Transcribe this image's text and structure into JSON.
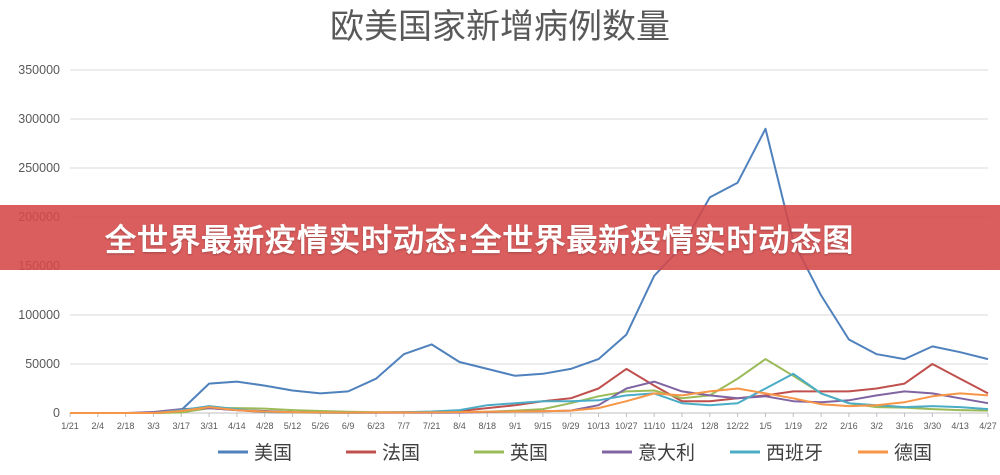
{
  "banner": {
    "text": "全世界最新疫情实时动态:全世界最新疫情实时动态图"
  },
  "chart_data": {
    "type": "line",
    "title": "欧美国家新增病例数量",
    "xlabel": "",
    "ylabel": "",
    "ylim": [
      0,
      350000
    ],
    "yticks": [
      "0",
      "50000",
      "100000",
      "150000",
      "200000",
      "250000",
      "300000",
      "350000"
    ],
    "x": [
      "1/21",
      "2/4",
      "2/18",
      "3/3",
      "3/17",
      "3/31",
      "4/14",
      "4/28",
      "5/12",
      "5/26",
      "6/9",
      "6/23",
      "7/7",
      "7/21",
      "8/4",
      "8/18",
      "9/1",
      "9/15",
      "9/29",
      "10/13",
      "10/27",
      "11/10",
      "11/24",
      "12/8",
      "12/22",
      "1/5",
      "1/19",
      "2/2",
      "2/16",
      "3/2",
      "3/16",
      "3/30",
      "4/13",
      "4/27"
    ],
    "grid": true,
    "legend": "bottom",
    "series": [
      {
        "name": "美国",
        "color": "#4F81BD",
        "values": [
          0,
          0,
          0,
          0,
          3000,
          30000,
          32000,
          28000,
          23000,
          20000,
          22000,
          35000,
          60000,
          70000,
          52000,
          45000,
          38000,
          40000,
          45000,
          55000,
          80000,
          140000,
          170000,
          220000,
          235000,
          290000,
          175000,
          120000,
          75000,
          60000,
          55000,
          68000,
          62000,
          55000
        ]
      },
      {
        "name": "法国",
        "color": "#C0504D",
        "values": [
          0,
          0,
          0,
          0,
          1000,
          5000,
          3000,
          1000,
          500,
          500,
          500,
          600,
          700,
          1000,
          2000,
          5000,
          8000,
          12000,
          15000,
          25000,
          45000,
          28000,
          12000,
          12000,
          15000,
          18000,
          22000,
          22000,
          22000,
          25000,
          30000,
          50000,
          35000,
          20000
        ]
      },
      {
        "name": "英国",
        "color": "#9BBB59",
        "values": [
          0,
          0,
          0,
          0,
          500,
          5000,
          5000,
          4500,
          3000,
          2000,
          1200,
          800,
          600,
          700,
          900,
          1200,
          2500,
          4000,
          10000,
          17000,
          22000,
          23000,
          15000,
          18000,
          35000,
          55000,
          38000,
          20000,
          10000,
          6000,
          5500,
          4000,
          3000,
          2500
        ]
      },
      {
        "name": "意大利",
        "color": "#8064A2",
        "values": [
          0,
          0,
          0,
          1000,
          4000,
          5000,
          3000,
          2000,
          800,
          400,
          300,
          200,
          200,
          250,
          400,
          1000,
          1500,
          1700,
          2500,
          8000,
          25000,
          32000,
          22000,
          18000,
          15000,
          17000,
          12000,
          11000,
          13000,
          18000,
          22000,
          20000,
          15000,
          10000
        ]
      },
      {
        "name": "西班牙",
        "color": "#4BACC6",
        "values": [
          0,
          0,
          0,
          0,
          3000,
          7000,
          4000,
          1000,
          500,
          300,
          300,
          400,
          800,
          1500,
          3000,
          8000,
          10000,
          12000,
          12000,
          13000,
          18000,
          20000,
          10000,
          8000,
          10000,
          25000,
          40000,
          20000,
          10000,
          8000,
          6000,
          7000,
          6000,
          4000
        ]
      },
      {
        "name": "德国",
        "color": "#F79646",
        "values": [
          0,
          0,
          0,
          0,
          2000,
          6000,
          3000,
          1500,
          800,
          500,
          400,
          500,
          500,
          600,
          900,
          1200,
          1500,
          1800,
          2500,
          5000,
          12000,
          20000,
          18000,
          22000,
          25000,
          20000,
          15000,
          9000,
          7000,
          8000,
          11000,
          17000,
          20000,
          18000
        ]
      }
    ]
  }
}
